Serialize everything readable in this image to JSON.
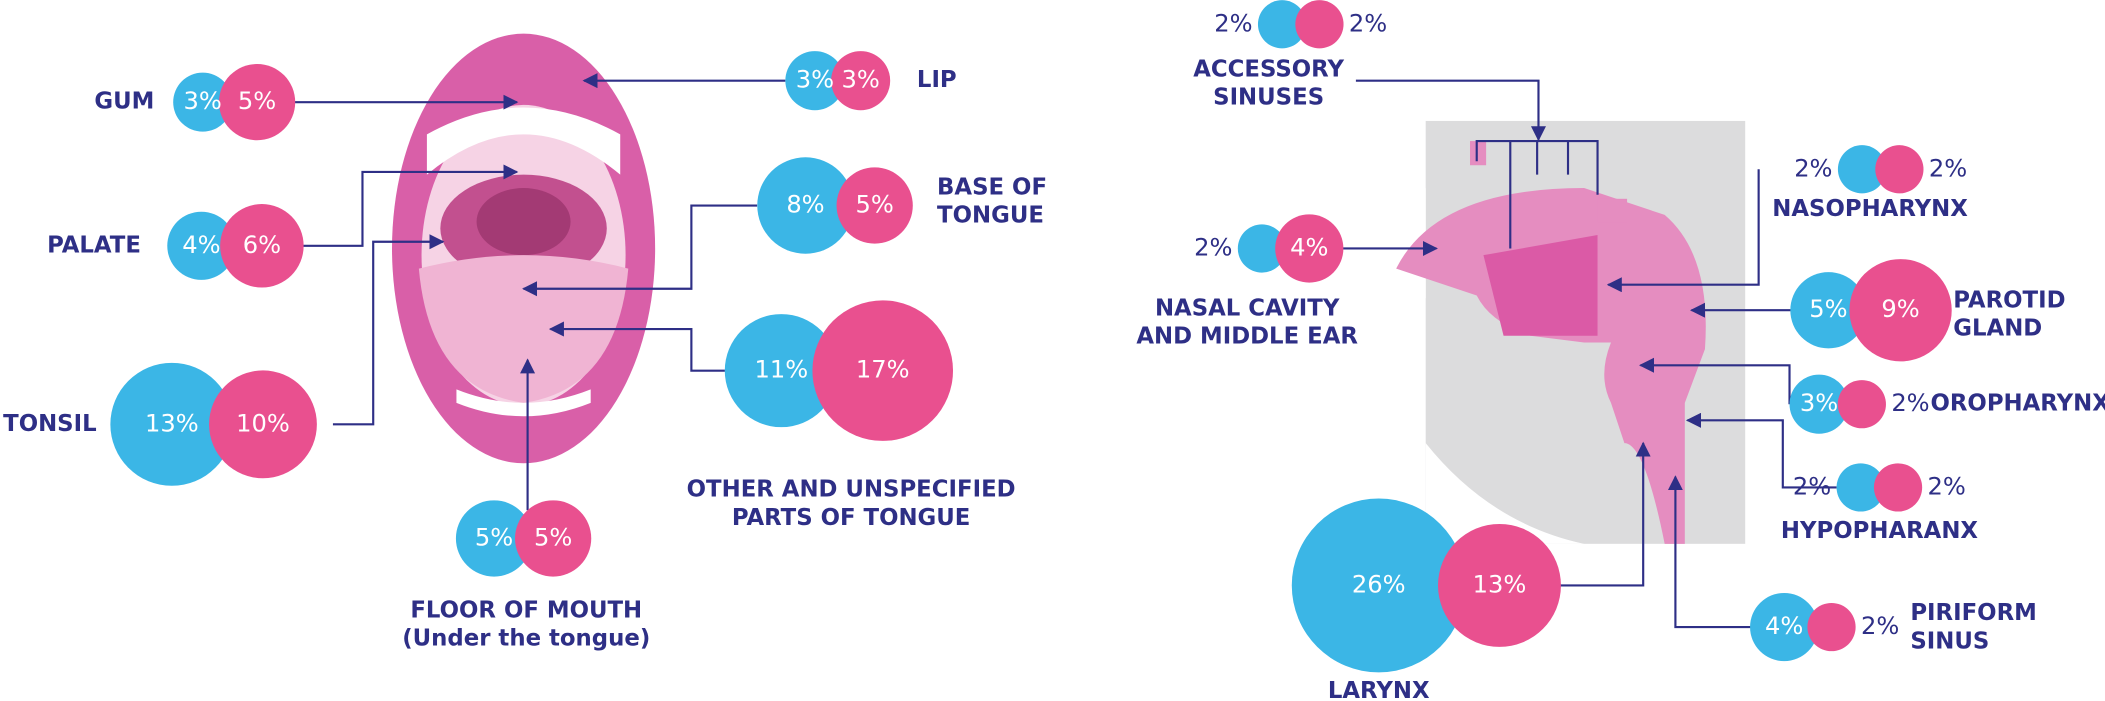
{
  "chart_data": {
    "type": "bubble",
    "categories": [
      [
        "GUM"
      ],
      [
        "PALATE"
      ],
      [
        "TONSIL"
      ],
      [
        "LIP"
      ],
      [
        "BASE OF",
        "TONGUE"
      ],
      [
        "OTHER AND UNSPECIFIED",
        "PARTS OF TONGUE"
      ],
      [
        "FLOOR OF MOUTH",
        "(Under the tongue)"
      ],
      [
        "ACCESSORY",
        "SINUSES"
      ],
      [
        "NASOPHARYNX"
      ],
      [
        "NASAL CAVITY",
        "AND MIDDLE EAR"
      ],
      [
        "PAROTID",
        "GLAND"
      ],
      [
        "OROPHARYNX"
      ],
      [
        "HYPOPHARANX"
      ],
      [
        "LARYNX"
      ],
      [
        "PIRIFORM",
        "SINUS"
      ]
    ],
    "series": [
      {
        "color": "#3bb6e6",
        "values": [
          3,
          4,
          13,
          3,
          8,
          11,
          5,
          2,
          2,
          2,
          5,
          3,
          2,
          26,
          4
        ],
        "value_labels": [
          "3%",
          "4%",
          "13%",
          "3%",
          "8%",
          "11%",
          "5%",
          "2%",
          "2%",
          "2%",
          "5%",
          "3%",
          "2%",
          "26%",
          "4%"
        ]
      },
      {
        "color": "#e9508f",
        "values": [
          5,
          6,
          10,
          3,
          5,
          17,
          5,
          2,
          2,
          4,
          9,
          2,
          2,
          13,
          2
        ],
        "value_labels": [
          "5%",
          "6%",
          "10%",
          "3%",
          "5%",
          "17%",
          "5%",
          "2%",
          "2%",
          "4%",
          "9%",
          "2%",
          "2%",
          "13%",
          "2%"
        ]
      }
    ]
  }
}
